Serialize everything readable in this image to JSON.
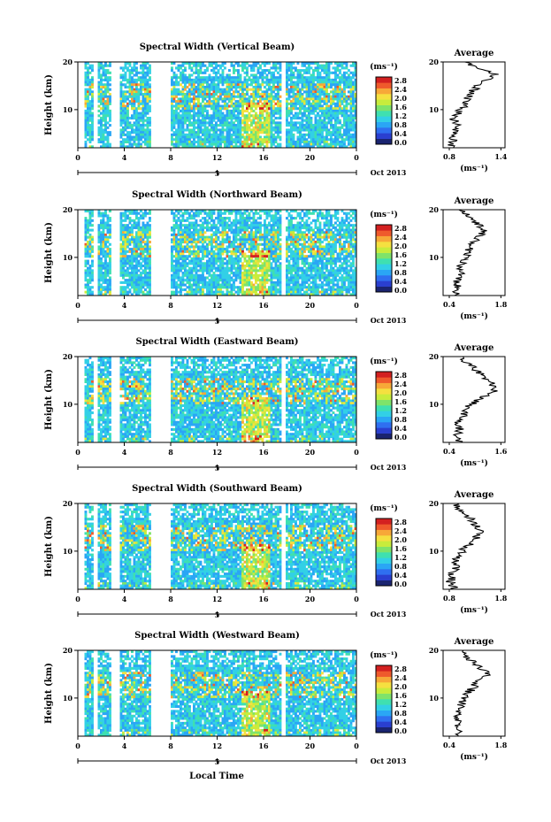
{
  "chart_data": [
    {
      "type": "heatmap",
      "title": "Spectral Width (Vertical Beam)",
      "ylabel": "Height (km)",
      "ylim": [
        2,
        20
      ],
      "yticks": [
        "20",
        "10"
      ],
      "xticks": [
        "0",
        "4",
        "8",
        "12",
        "16",
        "20",
        "0"
      ],
      "date_tick": "5",
      "month_label": "Oct 2013",
      "colorbar": {
        "unit_label": "(ms⁻¹)",
        "ticks": [
          "2.8",
          "2.4",
          "2.0",
          "1.6",
          "1.2",
          "0.8",
          "0.4",
          "0.0"
        ]
      },
      "average": {
        "title": "Average",
        "xticks": [
          "0.8",
          "1.4"
        ],
        "xlabel": "(ms⁻¹)",
        "ylim": [
          2,
          20
        ],
        "yticks": [
          "20",
          "10"
        ],
        "profile": [
          0.82,
          0.84,
          0.86,
          0.83,
          0.85,
          0.9,
          0.88,
          0.85,
          0.87,
          0.92,
          0.96,
          0.98,
          1.0,
          1.05,
          1.08,
          1.12,
          1.2,
          1.28,
          1.34,
          1.22,
          1.08,
          0.95
        ]
      }
    },
    {
      "type": "heatmap",
      "title": "Spectral Width (Northward Beam)",
      "ylabel": "Height (km)",
      "ylim": [
        2,
        20
      ],
      "yticks": [
        "20",
        "10"
      ],
      "xticks": [
        "0",
        "4",
        "8",
        "12",
        "16",
        "20",
        "0"
      ],
      "date_tick": "5",
      "month_label": "Oct 2013",
      "colorbar": {
        "unit_label": "(ms⁻¹)",
        "ticks": [
          "2.8",
          "2.4",
          "2.0",
          "1.6",
          "1.2",
          "0.8",
          "0.4",
          "0.0"
        ]
      },
      "average": {
        "title": "Average",
        "xticks": [
          "0.4",
          "1.8"
        ],
        "xlabel": "(ms⁻¹)",
        "ylim": [
          2,
          20
        ],
        "yticks": [
          "20",
          "10"
        ],
        "profile": [
          0.62,
          0.58,
          0.66,
          0.6,
          0.64,
          0.7,
          0.66,
          0.72,
          0.74,
          0.8,
          0.86,
          0.92,
          0.98,
          1.05,
          1.15,
          1.25,
          1.35,
          1.22,
          1.1,
          0.95,
          0.82,
          0.7
        ]
      }
    },
    {
      "type": "heatmap",
      "title": "Spectral Width (Eastward Beam)",
      "ylabel": "Height (km)",
      "ylim": [
        2,
        20
      ],
      "yticks": [
        "20",
        "10"
      ],
      "xticks": [
        "0",
        "4",
        "8",
        "12",
        "16",
        "20",
        "0"
      ],
      "date_tick": "5",
      "month_label": "Oct 2013",
      "colorbar": {
        "unit_label": "(ms⁻¹)",
        "ticks": [
          "2.8",
          "2.4",
          "2.0",
          "1.6",
          "1.2",
          "0.8",
          "0.4",
          "0.0"
        ]
      },
      "average": {
        "title": "Average",
        "xticks": [
          "0.4",
          "1.6"
        ],
        "xlabel": "(ms⁻¹)",
        "ylim": [
          2,
          20
        ],
        "yticks": [
          "20",
          "10"
        ],
        "profile": [
          0.6,
          0.62,
          0.58,
          0.64,
          0.66,
          0.62,
          0.7,
          0.72,
          0.78,
          0.86,
          1.0,
          1.18,
          1.36,
          1.5,
          1.42,
          1.3,
          1.22,
          1.1,
          0.98,
          0.86,
          0.74,
          0.66
        ]
      }
    },
    {
      "type": "heatmap",
      "title": "Spectral Width (Southward Beam)",
      "ylabel": "Height (km)",
      "ylim": [
        2,
        20
      ],
      "yticks": [
        "20",
        "10"
      ],
      "xticks": [
        "0",
        "4",
        "8",
        "12",
        "16",
        "20",
        "0"
      ],
      "date_tick": "5",
      "month_label": "Oct 2013",
      "colorbar": {
        "unit_label": "(ms⁻¹)",
        "ticks": [
          "2.8",
          "2.4",
          "2.0",
          "1.6",
          "1.2",
          "0.8",
          "0.4",
          "0.0"
        ]
      },
      "average": {
        "title": "Average",
        "xticks": [
          "0.8",
          "1.8"
        ],
        "xlabel": "(ms⁻¹)",
        "ylim": [
          2,
          20
        ],
        "yticks": [
          "20",
          "10"
        ],
        "profile": [
          0.9,
          0.86,
          0.82,
          0.88,
          0.84,
          0.9,
          0.95,
          0.92,
          0.98,
          1.05,
          1.1,
          1.18,
          1.25,
          1.35,
          1.45,
          1.38,
          1.3,
          1.22,
          1.15,
          1.05,
          0.95,
          0.88
        ]
      }
    },
    {
      "type": "heatmap",
      "title": "Spectral Width (Westward Beam)",
      "ylabel": "Height (km)",
      "ylim": [
        2,
        20
      ],
      "yticks": [
        "20",
        "10"
      ],
      "xticks": [
        "0",
        "4",
        "8",
        "12",
        "16",
        "20",
        "0"
      ],
      "date_tick": "5",
      "month_label": "Oct 2013",
      "colorbar": {
        "unit_label": "(ms⁻¹)",
        "ticks": [
          "2.8",
          "2.4",
          "2.0",
          "1.6",
          "1.2",
          "0.8",
          "0.4",
          "0.0"
        ]
      },
      "average": {
        "title": "Average",
        "xticks": [
          "0.4",
          "1.8"
        ],
        "xlabel": "(ms⁻¹)",
        "ylim": [
          2,
          20
        ],
        "yticks": [
          "20",
          "10"
        ],
        "profile": [
          0.6,
          0.62,
          0.58,
          0.6,
          0.64,
          0.66,
          0.7,
          0.68,
          0.74,
          0.8,
          0.86,
          0.95,
          1.05,
          1.15,
          1.3,
          1.45,
          1.35,
          1.2,
          1.05,
          0.92,
          0.8,
          0.7
        ]
      }
    }
  ],
  "footer": {
    "xlabel": "Local Time"
  },
  "colormap": [
    "#1a2470",
    "#2a3fd0",
    "#2f6ff0",
    "#2aa6f5",
    "#32d0e6",
    "#3fe0b0",
    "#7fe36a",
    "#c8ec3c",
    "#f5e040",
    "#f7a838",
    "#ef5a2c",
    "#d32020"
  ],
  "colors": {
    "frame": "#000000",
    "background": "#ffffff"
  }
}
